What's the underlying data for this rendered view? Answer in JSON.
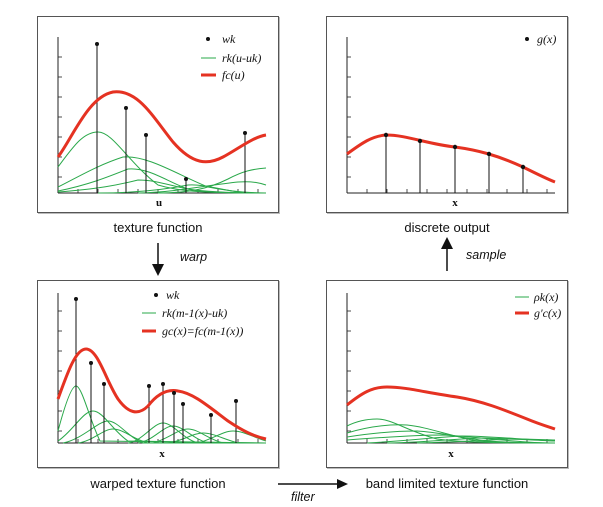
{
  "panels": {
    "texture": {
      "caption": "texture function",
      "axis_label": "u",
      "legend": [
        "wk",
        "rk(u-uk)",
        "fc(u)"
      ]
    },
    "discrete": {
      "caption": "discrete output",
      "axis_label": "x",
      "legend": [
        "g(x)"
      ]
    },
    "warped": {
      "caption": "warped texture function",
      "axis_label": "x",
      "legend": [
        "wk",
        "rk(m-1(x)-uk)",
        "gc(x)=fc(m-1(x))"
      ]
    },
    "bandlimited": {
      "caption": "band limited texture function",
      "axis_label": "x",
      "legend": [
        "ρk(x)",
        "g'c(x)"
      ]
    }
  },
  "arrows": {
    "warp": "warp",
    "sample": "sample",
    "filter": "filter"
  },
  "colors": {
    "curve_red": "#e53222",
    "kernel_green": "#2aa84a",
    "stem_black": "#111111"
  }
}
